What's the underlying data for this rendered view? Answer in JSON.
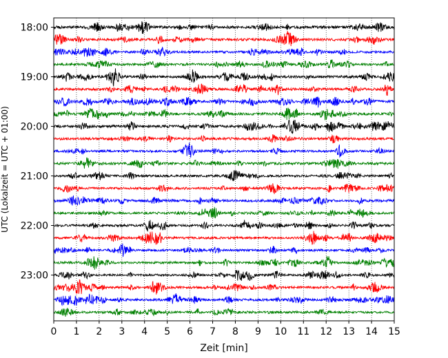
{
  "chart_data": {
    "type": "line",
    "title": "",
    "xlabel": "Zeit  [min]",
    "ylabel": "UTC (Lokalzeit = UTC + 01:00)",
    "xlim": [
      0,
      15
    ],
    "x_ticks": [
      "0",
      "1",
      "2",
      "3",
      "4",
      "5",
      "6",
      "7",
      "8",
      "9",
      "10",
      "11",
      "12",
      "13",
      "14",
      "15"
    ],
    "y_tick_labels": [
      "18:00",
      "19:00",
      "20:00",
      "21:00",
      "22:00",
      "23:00"
    ],
    "y_tick_trace_index": [
      0,
      4,
      8,
      12,
      16,
      20
    ],
    "grid": "vertical dotted lines at each minute",
    "legend": "none",
    "color_cycle": [
      "#000000",
      "#ff0000",
      "#0000ff",
      "#008000"
    ],
    "trace_interval_minutes": 15,
    "series": [
      {
        "start": "18:00",
        "color": "#000000",
        "amplitude": 1.0
      },
      {
        "start": "18:15",
        "color": "#ff0000",
        "amplitude": 0.9
      },
      {
        "start": "18:30",
        "color": "#0000ff",
        "amplitude": 0.8
      },
      {
        "start": "18:45",
        "color": "#008000",
        "amplitude": 0.8
      },
      {
        "start": "19:00",
        "color": "#000000",
        "amplitude": 0.9
      },
      {
        "start": "19:15",
        "color": "#ff0000",
        "amplitude": 0.9
      },
      {
        "start": "19:30",
        "color": "#0000ff",
        "amplitude": 0.9
      },
      {
        "start": "19:45",
        "color": "#008000",
        "amplitude": 0.9
      },
      {
        "start": "20:00",
        "color": "#000000",
        "amplitude": 0.9
      },
      {
        "start": "20:15",
        "color": "#ff0000",
        "amplitude": 0.9
      },
      {
        "start": "20:30",
        "color": "#0000ff",
        "amplitude": 0.8
      },
      {
        "start": "20:45",
        "color": "#008000",
        "amplitude": 0.9
      },
      {
        "start": "21:00",
        "color": "#000000",
        "amplitude": 0.8
      },
      {
        "start": "21:15",
        "color": "#ff0000",
        "amplitude": 0.8
      },
      {
        "start": "21:30",
        "color": "#0000ff",
        "amplitude": 0.9
      },
      {
        "start": "21:45",
        "color": "#008000",
        "amplitude": 0.8
      },
      {
        "start": "22:00",
        "color": "#000000",
        "amplitude": 0.8
      },
      {
        "start": "22:15",
        "color": "#ff0000",
        "amplitude": 0.8
      },
      {
        "start": "22:30",
        "color": "#0000ff",
        "amplitude": 0.8
      },
      {
        "start": "22:45",
        "color": "#008000",
        "amplitude": 0.8
      },
      {
        "start": "23:00",
        "color": "#000000",
        "amplitude": 0.7
      },
      {
        "start": "23:15",
        "color": "#ff0000",
        "amplitude": 0.8
      },
      {
        "start": "23:30",
        "color": "#0000ff",
        "amplitude": 0.9
      },
      {
        "start": "23:45",
        "color": "#008000",
        "amplitude": 0.8
      }
    ]
  }
}
